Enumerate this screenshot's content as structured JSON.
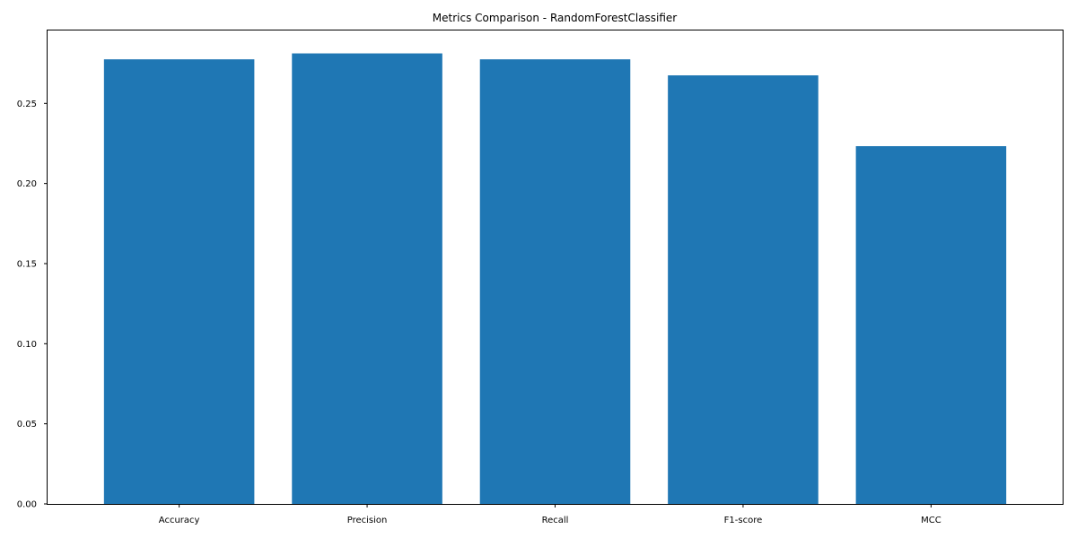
{
  "chart_data": {
    "type": "bar",
    "title": "Metrics Comparison - RandomForestClassifier",
    "xlabel": "",
    "ylabel": "",
    "categories": [
      "Accuracy",
      "Precision",
      "Recall",
      "F1-score",
      "MCC"
    ],
    "values": [
      0.2775,
      0.2812,
      0.2775,
      0.2675,
      0.2233
    ],
    "ylim": [
      0,
      0.2955
    ],
    "yticks": [
      0.0,
      0.05,
      0.1,
      0.15,
      0.2,
      0.25
    ],
    "ytick_labels": [
      "0.00",
      "0.05",
      "0.10",
      "0.15",
      "0.20",
      "0.25"
    ],
    "grid": false,
    "legend": "none",
    "bar_color": "#1f77b4"
  }
}
